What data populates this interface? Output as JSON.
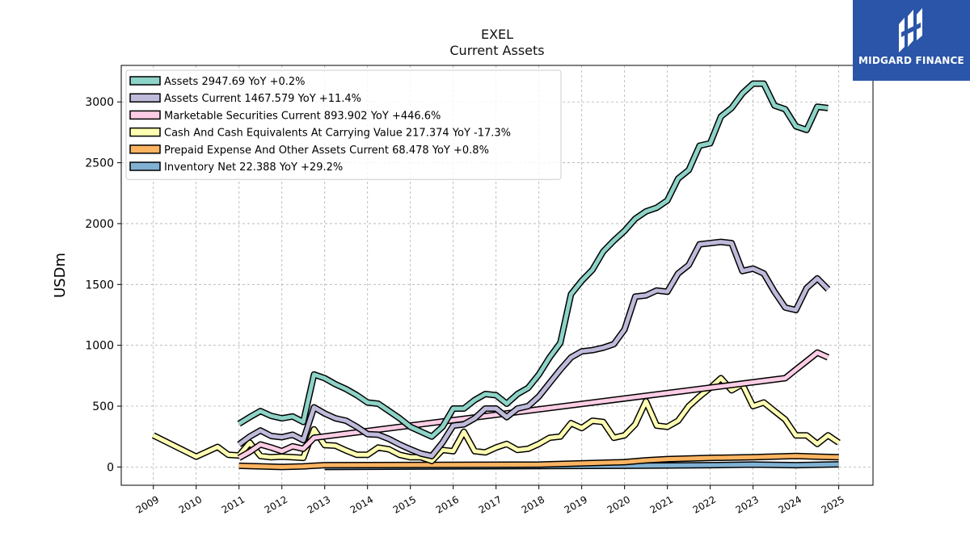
{
  "header": {
    "title": "EXEL",
    "subtitle": "Current  Assets"
  },
  "logo": {
    "brand": "MIDGARD FINANCE"
  },
  "chart_data": {
    "type": "line",
    "title": "EXEL",
    "subtitle": "Current  Assets",
    "xlabel": "",
    "ylabel": "USDm",
    "xlim": [
      2008.25,
      2025.8
    ],
    "ylim": [
      -150,
      3300
    ],
    "yticks": [
      0,
      500,
      1000,
      1500,
      2000,
      2500,
      3000
    ],
    "xticks": [
      2009,
      2010,
      2011,
      2012,
      2013,
      2014,
      2015,
      2016,
      2017,
      2018,
      2019,
      2020,
      2021,
      2022,
      2023,
      2024,
      2025
    ],
    "grid": true,
    "legend_position": "top-left",
    "series": [
      {
        "name": "Assets",
        "legend": "Assets  2947.69 YoY +0.2%",
        "color": "#8dd3c7",
        "points": [
          [
            2011.0,
            355
          ],
          [
            2011.25,
            410
          ],
          [
            2011.5,
            460
          ],
          [
            2011.75,
            420
          ],
          [
            2012.0,
            400
          ],
          [
            2012.25,
            415
          ],
          [
            2012.5,
            370
          ],
          [
            2012.75,
            760
          ],
          [
            2013.0,
            730
          ],
          [
            2013.25,
            680
          ],
          [
            2013.5,
            640
          ],
          [
            2013.75,
            590
          ],
          [
            2014.0,
            530
          ],
          [
            2014.25,
            520
          ],
          [
            2014.5,
            460
          ],
          [
            2014.75,
            400
          ],
          [
            2015.0,
            330
          ],
          [
            2015.25,
            290
          ],
          [
            2015.5,
            250
          ],
          [
            2015.75,
            330
          ],
          [
            2016.0,
            480
          ],
          [
            2016.25,
            480
          ],
          [
            2016.5,
            550
          ],
          [
            2016.75,
            600
          ],
          [
            2017.0,
            590
          ],
          [
            2017.25,
            520
          ],
          [
            2017.5,
            600
          ],
          [
            2017.75,
            650
          ],
          [
            2018.0,
            760
          ],
          [
            2018.25,
            900
          ],
          [
            2018.5,
            1020
          ],
          [
            2018.75,
            1420
          ],
          [
            2019.0,
            1530
          ],
          [
            2019.25,
            1620
          ],
          [
            2019.5,
            1770
          ],
          [
            2019.75,
            1860
          ],
          [
            2020.0,
            1940
          ],
          [
            2020.25,
            2040
          ],
          [
            2020.5,
            2100
          ],
          [
            2020.75,
            2130
          ],
          [
            2021.0,
            2190
          ],
          [
            2021.25,
            2370
          ],
          [
            2021.5,
            2440
          ],
          [
            2021.75,
            2640
          ],
          [
            2022.0,
            2660
          ],
          [
            2022.25,
            2880
          ],
          [
            2022.5,
            2950
          ],
          [
            2022.75,
            3070
          ],
          [
            2023.0,
            3150
          ],
          [
            2023.25,
            3150
          ],
          [
            2023.5,
            2970
          ],
          [
            2023.75,
            2940
          ],
          [
            2024.0,
            2800
          ],
          [
            2024.25,
            2770
          ],
          [
            2024.5,
            2960
          ],
          [
            2024.75,
            2950
          ]
        ]
      },
      {
        "name": "Assets Current",
        "legend": "Assets Current  1467.579 YoY +11.4%",
        "color": "#bebada",
        "points": [
          [
            2011.0,
            185
          ],
          [
            2011.25,
            250
          ],
          [
            2011.5,
            300
          ],
          [
            2011.75,
            255
          ],
          [
            2012.0,
            245
          ],
          [
            2012.25,
            265
          ],
          [
            2012.5,
            220
          ],
          [
            2012.75,
            490
          ],
          [
            2013.0,
            440
          ],
          [
            2013.25,
            400
          ],
          [
            2013.5,
            380
          ],
          [
            2013.75,
            330
          ],
          [
            2014.0,
            270
          ],
          [
            2014.25,
            265
          ],
          [
            2014.5,
            230
          ],
          [
            2014.75,
            185
          ],
          [
            2015.0,
            145
          ],
          [
            2015.25,
            110
          ],
          [
            2015.5,
            90
          ],
          [
            2015.75,
            200
          ],
          [
            2016.0,
            340
          ],
          [
            2016.25,
            350
          ],
          [
            2016.5,
            400
          ],
          [
            2016.75,
            480
          ],
          [
            2017.0,
            480
          ],
          [
            2017.25,
            410
          ],
          [
            2017.5,
            480
          ],
          [
            2017.75,
            500
          ],
          [
            2018.0,
            580
          ],
          [
            2018.25,
            690
          ],
          [
            2018.5,
            800
          ],
          [
            2018.75,
            900
          ],
          [
            2019.0,
            950
          ],
          [
            2019.25,
            960
          ],
          [
            2019.5,
            980
          ],
          [
            2019.75,
            1010
          ],
          [
            2020.0,
            1130
          ],
          [
            2020.25,
            1400
          ],
          [
            2020.5,
            1410
          ],
          [
            2020.75,
            1450
          ],
          [
            2021.0,
            1440
          ],
          [
            2021.25,
            1590
          ],
          [
            2021.5,
            1660
          ],
          [
            2021.75,
            1830
          ],
          [
            2022.0,
            1840
          ],
          [
            2022.25,
            1850
          ],
          [
            2022.5,
            1840
          ],
          [
            2022.75,
            1610
          ],
          [
            2023.0,
            1630
          ],
          [
            2023.25,
            1590
          ],
          [
            2023.5,
            1440
          ],
          [
            2023.75,
            1310
          ],
          [
            2024.0,
            1290
          ],
          [
            2024.25,
            1470
          ],
          [
            2024.5,
            1550
          ],
          [
            2024.75,
            1460
          ]
        ]
      },
      {
        "name": "Marketable Securities Current",
        "legend": "Marketable Securities Current  893.902 YoY +446.6%",
        "color": "#fccde5",
        "points": [
          [
            2011.0,
            75
          ],
          [
            2011.25,
            125
          ],
          [
            2011.5,
            185
          ],
          [
            2011.75,
            160
          ],
          [
            2012.0,
            130
          ],
          [
            2012.25,
            170
          ],
          [
            2012.5,
            150
          ],
          [
            2012.75,
            240
          ],
          [
            2023.75,
            730
          ],
          [
            2024.0,
            800
          ],
          [
            2024.25,
            870
          ],
          [
            2024.5,
            940
          ],
          [
            2024.75,
            900
          ]
        ]
      },
      {
        "name": "Cash And Cash Equivalents At Carrying Value",
        "legend": "Cash And Cash Equivalents At Carrying Value  217.374 YoY -17.3%",
        "color": "#ffffb3",
        "points": [
          [
            2009.0,
            260
          ],
          [
            2010.0,
            85
          ],
          [
            2010.5,
            165
          ],
          [
            2010.75,
            100
          ],
          [
            2011.0,
            95
          ],
          [
            2011.25,
            200
          ],
          [
            2011.5,
            90
          ],
          [
            2011.75,
            80
          ],
          [
            2012.0,
            85
          ],
          [
            2012.25,
            80
          ],
          [
            2012.5,
            75
          ],
          [
            2012.75,
            310
          ],
          [
            2013.0,
            180
          ],
          [
            2013.25,
            175
          ],
          [
            2013.5,
            135
          ],
          [
            2013.75,
            100
          ],
          [
            2014.0,
            100
          ],
          [
            2014.25,
            160
          ],
          [
            2014.5,
            145
          ],
          [
            2014.75,
            100
          ],
          [
            2015.0,
            80
          ],
          [
            2015.25,
            80
          ],
          [
            2015.5,
            50
          ],
          [
            2015.75,
            140
          ],
          [
            2016.0,
            130
          ],
          [
            2016.25,
            290
          ],
          [
            2016.5,
            130
          ],
          [
            2016.75,
            120
          ],
          [
            2017.0,
            160
          ],
          [
            2017.25,
            190
          ],
          [
            2017.5,
            140
          ],
          [
            2017.75,
            150
          ],
          [
            2018.0,
            190
          ],
          [
            2018.25,
            240
          ],
          [
            2018.5,
            250
          ],
          [
            2018.75,
            360
          ],
          [
            2019.0,
            320
          ],
          [
            2019.25,
            380
          ],
          [
            2019.5,
            370
          ],
          [
            2019.75,
            240
          ],
          [
            2020.0,
            260
          ],
          [
            2020.25,
            350
          ],
          [
            2020.5,
            540
          ],
          [
            2020.75,
            340
          ],
          [
            2021.0,
            330
          ],
          [
            2021.25,
            380
          ],
          [
            2021.5,
            500
          ],
          [
            2021.75,
            580
          ],
          [
            2022.0,
            650
          ],
          [
            2022.25,
            730
          ],
          [
            2022.5,
            630
          ],
          [
            2022.75,
            680
          ],
          [
            2023.0,
            500
          ],
          [
            2023.25,
            530
          ],
          [
            2023.5,
            460
          ],
          [
            2023.75,
            390
          ],
          [
            2024.0,
            260
          ],
          [
            2024.25,
            260
          ],
          [
            2024.5,
            190
          ],
          [
            2024.75,
            260
          ],
          [
            2025.0,
            200
          ]
        ]
      },
      {
        "name": "Prepaid Expense And Other Assets Current",
        "legend": "Prepaid Expense And Other Assets Current  68.478 YoY +0.8%",
        "color": "#fdb462",
        "points": [
          [
            2011.0,
            10
          ],
          [
            2012.0,
            0
          ],
          [
            2012.5,
            5
          ],
          [
            2013.0,
            15
          ],
          [
            2018.0,
            20
          ],
          [
            2019.0,
            30
          ],
          [
            2020.0,
            40
          ],
          [
            2020.5,
            55
          ],
          [
            2021.0,
            65
          ],
          [
            2022.0,
            75
          ],
          [
            2023.0,
            80
          ],
          [
            2024.0,
            90
          ],
          [
            2024.5,
            85
          ],
          [
            2025.0,
            80
          ]
        ]
      },
      {
        "name": "Inventory Net",
        "legend": "Inventory Net  22.388 YoY +29.2%",
        "color": "#80b1d3",
        "points": [
          [
            2013.0,
            0
          ],
          [
            2016.0,
            5
          ],
          [
            2020.0,
            10
          ],
          [
            2022.0,
            15
          ],
          [
            2023.0,
            20
          ],
          [
            2024.0,
            15
          ],
          [
            2025.0,
            22
          ]
        ]
      }
    ]
  }
}
